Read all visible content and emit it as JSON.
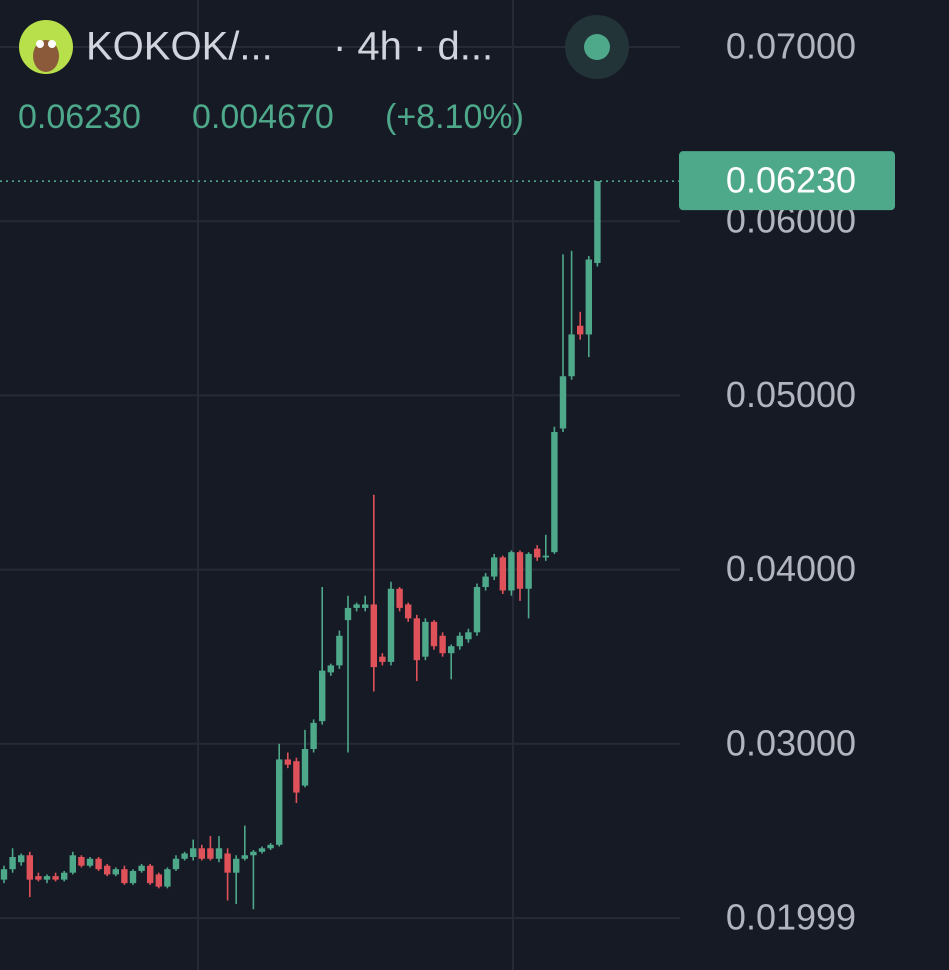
{
  "header": {
    "symbol": "KOKOK/...",
    "interval": "· 4h · d...",
    "price": "0.06230",
    "change": "0.004670",
    "change_percent": "(+8.10%)"
  },
  "chart_data": {
    "type": "candlestick",
    "up_color": "#4ea88a",
    "down_color": "#e0525a",
    "ylim": [
      0.0173,
      0.0727
    ],
    "yticks": [
      {
        "value": 0.07,
        "label": "0.07000"
      },
      {
        "value": 0.06,
        "label": "0.06000"
      },
      {
        "value": 0.05,
        "label": "0.05000"
      },
      {
        "value": 0.04,
        "label": "0.04000"
      },
      {
        "value": 0.03,
        "label": "0.03000"
      },
      0.01999
    ],
    "grid": true,
    "last_price": {
      "value": 0.0623,
      "label": "0.06230"
    },
    "open": [
      0.0222,
      0.0228,
      0.0232,
      0.0236,
      0.0224,
      0.0222,
      0.0224,
      0.0222,
      0.0226,
      0.0235,
      0.023,
      0.0234,
      0.023,
      0.0225,
      0.0228,
      0.022,
      0.0227,
      0.023,
      0.0225,
      0.0218,
      0.0228,
      0.0234,
      0.0235,
      0.024,
      0.024,
      0.0234,
      0.0237,
      0.0226,
      0.0234,
      0.0236,
      0.0238,
      0.024,
      0.0242,
      0.0291,
      0.029,
      0.0276,
      0.0297,
      0.0313,
      0.0341,
      0.0345,
      0.0371,
      0.0378,
      0.0378,
      0.038,
      0.035,
      0.0347,
      0.0389,
      0.038,
      0.0372,
      0.035,
      0.037,
      0.0362,
      0.0352,
      0.0356,
      0.036,
      0.0364,
      0.039,
      0.0396,
      0.0407,
      0.0388,
      0.041,
      0.0389,
      0.0412,
      0.0407,
      0.041,
      0.0481,
      0.0511,
      0.054,
      0.0535,
      0.0576
    ],
    "high": [
      0.023,
      0.024,
      0.0237,
      0.0238,
      0.0226,
      0.0225,
      0.0226,
      0.0227,
      0.0238,
      0.0236,
      0.0235,
      0.0235,
      0.0231,
      0.0229,
      0.023,
      0.0228,
      0.0231,
      0.0231,
      0.0226,
      0.0229,
      0.0236,
      0.0238,
      0.0245,
      0.0242,
      0.0247,
      0.0247,
      0.024,
      0.0236,
      0.0253,
      0.0239,
      0.0241,
      0.0243,
      0.03,
      0.0295,
      0.0292,
      0.0308,
      0.0314,
      0.039,
      0.0346,
      0.0365,
      0.0385,
      0.0381,
      0.0385,
      0.0443,
      0.0352,
      0.0393,
      0.039,
      0.0381,
      0.0374,
      0.0372,
      0.0371,
      0.0364,
      0.0357,
      0.0364,
      0.0366,
      0.0392,
      0.0398,
      0.0409,
      0.0408,
      0.0411,
      0.0411,
      0.041,
      0.0414,
      0.042,
      0.0482,
      0.0581,
      0.0583,
      0.0548,
      0.058,
      0.0623
    ],
    "low": [
      0.022,
      0.0226,
      0.023,
      0.0212,
      0.0221,
      0.022,
      0.0221,
      0.0221,
      0.0225,
      0.0229,
      0.0229,
      0.0227,
      0.0224,
      0.0224,
      0.0219,
      0.0219,
      0.0226,
      0.0219,
      0.0217,
      0.0217,
      0.0227,
      0.0233,
      0.0233,
      0.0233,
      0.0233,
      0.0232,
      0.021,
      0.0208,
      0.0233,
      0.0205,
      0.0237,
      0.0239,
      0.0241,
      0.0286,
      0.0266,
      0.0275,
      0.0295,
      0.0311,
      0.0339,
      0.0343,
      0.0295,
      0.0376,
      0.0376,
      0.033,
      0.0345,
      0.0345,
      0.0376,
      0.037,
      0.0336,
      0.0348,
      0.0354,
      0.035,
      0.0337,
      0.0354,
      0.0358,
      0.0362,
      0.0388,
      0.0394,
      0.0386,
      0.0385,
      0.0382,
      0.0372,
      0.0405,
      0.0405,
      0.0409,
      0.0479,
      0.0509,
      0.0532,
      0.0522,
      0.0574
    ],
    "close": [
      0.0228,
      0.0235,
      0.0236,
      0.0222,
      0.0222,
      0.0224,
      0.0222,
      0.0226,
      0.0236,
      0.023,
      0.0234,
      0.0228,
      0.0225,
      0.0228,
      0.022,
      0.0227,
      0.023,
      0.022,
      0.0218,
      0.0228,
      0.0234,
      0.0237,
      0.024,
      0.0234,
      0.0234,
      0.024,
      0.0226,
      0.0234,
      0.0236,
      0.0238,
      0.024,
      0.0242,
      0.0291,
      0.0288,
      0.0272,
      0.0297,
      0.0312,
      0.0342,
      0.0345,
      0.0362,
      0.0378,
      0.038,
      0.038,
      0.0344,
      0.0347,
      0.0389,
      0.0378,
      0.0372,
      0.0348,
      0.037,
      0.0356,
      0.0352,
      0.0356,
      0.0362,
      0.0364,
      0.039,
      0.0396,
      0.0407,
      0.0388,
      0.041,
      0.0389,
      0.0409,
      0.0407,
      0.0408,
      0.0479,
      0.0511,
      0.0535,
      0.0535,
      0.0578,
      0.0623
    ]
  }
}
